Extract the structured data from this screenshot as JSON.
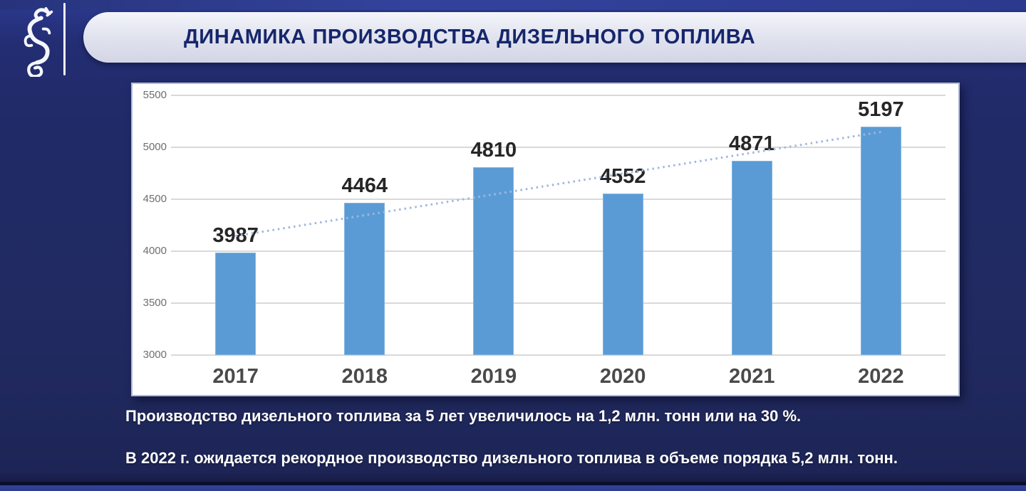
{
  "page": {
    "title": "ДИНАМИКА ПРОИЗВОДСТВА ДИЗЕЛЬНОГО ТОПЛИВА",
    "logo_icon": "zilant-dragon-emblem",
    "notes": [
      "Производство дизельного топлива за 5 лет увеличилось на 1,2 млн. тонн или на 30 %.",
      "В 2022 г. ожидается рекордное производство дизельного топлива в объеме порядка 5,2 млн. тонн."
    ]
  },
  "colors": {
    "background": "#212a63",
    "banner_fill": "#e2e4f0",
    "banner_text": "#16266b",
    "bar": "#5b9bd5",
    "trendline": "#9fb8dc",
    "gridline": "#d9d9d9",
    "ytick_label": "#6e6e6e",
    "value_label": "#262626",
    "category_label": "#4a4a4a",
    "note_text": "#ffffff"
  },
  "chart_data": {
    "type": "bar",
    "categories": [
      "2017",
      "2018",
      "2019",
      "2020",
      "2021",
      "2022"
    ],
    "values": [
      3987,
      4464,
      4810,
      4552,
      4871,
      5197
    ],
    "title": "",
    "xlabel": "",
    "ylabel": "",
    "ylim": [
      3000,
      5500
    ],
    "yticks": [
      3000,
      3500,
      4000,
      4500,
      5000,
      5500
    ],
    "grid": true,
    "legend": "none",
    "data_labels": true,
    "trendline": "linear-dotted"
  }
}
